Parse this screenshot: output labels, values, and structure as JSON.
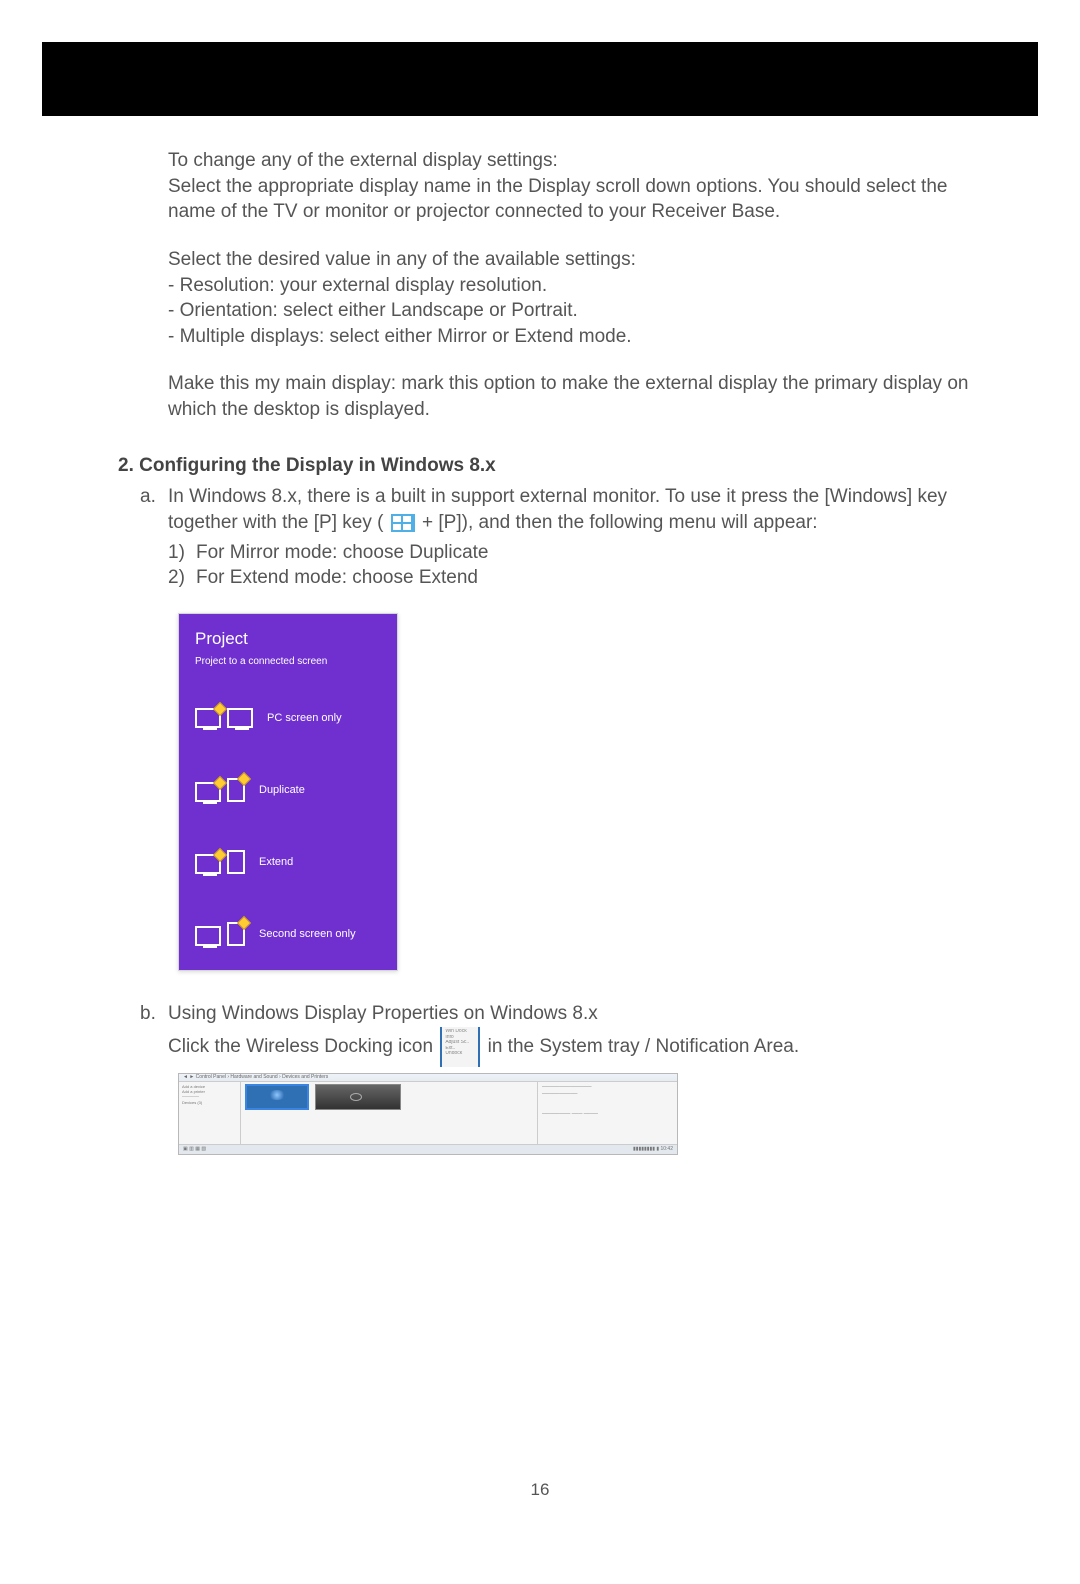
{
  "page_number": "16",
  "intro": {
    "p1": "To change any of the external display settings:",
    "p2": "Select the appropriate display name in the Display scroll down options. You should select the name of the TV or monitor or projector connected to your Receiver Base.",
    "p3": "Select the desired value in any of the available settings:",
    "b1": "- Resolution: your external display resolution.",
    "b2": "- Orientation: select either Landscape or Portrait.",
    "b3": "- Multiple displays: select either Mirror or Extend mode.",
    "p4": "Make this my main display: mark this option to make the external display the primary display on which the desktop is displayed."
  },
  "section2": {
    "heading": "2.  Configuring the Display in Windows 8.x",
    "a_letter": "a.",
    "a_text_pre": "In Windows 8.x, there is a built in support external monitor. To use it press the [Windows] key together with the [P] key (",
    "a_text_post": " + [P]), and then the following menu will appear:",
    "a_n1_num": "1)",
    "a_n1": "For Mirror mode: choose Duplicate",
    "a_n2_num": "2)",
    "a_n2": "For Extend mode: choose Extend",
    "b_letter": "b.",
    "b_line1": "Using Windows Display Properties on Windows 8.x",
    "b_line2_pre": "Click the Wireless Docking icon",
    "b_line2_post": "in the System tray / Notification Area."
  },
  "project_panel": {
    "title": "Project",
    "subtitle": "Project to a connected screen",
    "items": [
      {
        "label": "PC screen only"
      },
      {
        "label": "Duplicate"
      },
      {
        "label": "Extend"
      },
      {
        "label": "Second screen only"
      }
    ]
  }
}
